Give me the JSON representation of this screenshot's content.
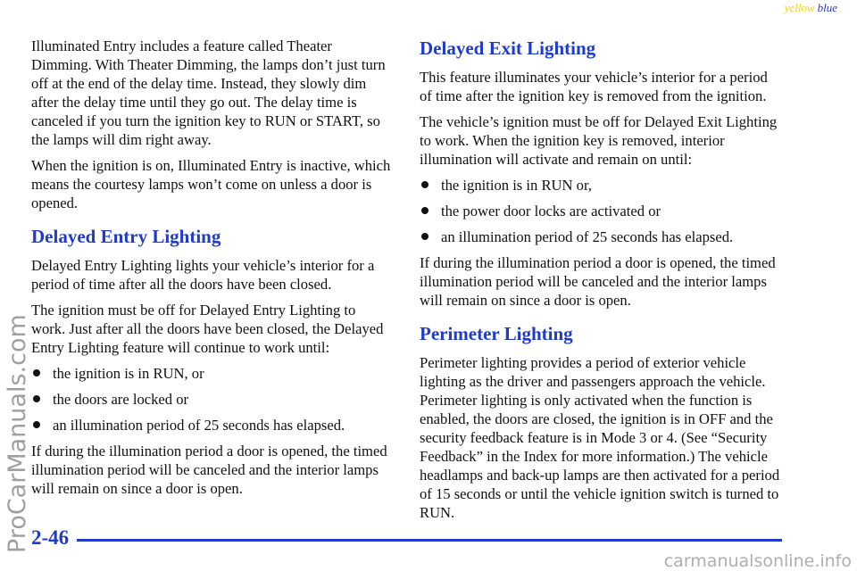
{
  "header": {
    "tag_yellow": "yellow",
    "tag_blue": "blue"
  },
  "left_column": {
    "paragraphs": [
      "Illuminated Entry includes a feature called Theater Dimming. With Theater Dimming, the lamps don’t just turn off at the end of the delay time. Instead, they slowly dim after the delay time until they go out. The delay time is canceled if you turn the ignition key to RUN or START, so the lamps will dim right away.",
      "When the ignition is on, Illuminated Entry is inactive, which means the courtesy lamps won’t come on unless a door is opened."
    ],
    "sections": [
      {
        "heading": "Delayed Entry Lighting",
        "paragraphs": [
          "Delayed Entry Lighting lights your vehicle’s interior for a period of time after all the doors have been closed.",
          "The ignition must be off for Delayed Entry Lighting to work. Just after all the doors have been closed, the Delayed Entry Lighting feature will continue to work until:"
        ],
        "bullets": [
          "the ignition is in RUN, or",
          "the doors are locked or",
          "an illumination period of 25 seconds has elapsed."
        ],
        "closing": [
          "If during the illumination period a door is opened, the timed illumination period will be canceled and the interior lamps will remain on since a door is open."
        ]
      }
    ]
  },
  "right_column": {
    "sections": [
      {
        "heading": "Delayed Exit Lighting",
        "paragraphs": [
          "This feature illuminates your vehicle’s interior for a period of time after the ignition key is removed from the ignition.",
          "The vehicle’s ignition must be off for Delayed Exit Lighting to work. When the ignition key is removed, interior illumination will activate and remain on until:"
        ],
        "bullets": [
          "the ignition is in RUN or,",
          "the power door locks are activated or",
          "an illumination period of 25 seconds has elapsed."
        ],
        "closing": [
          "If during the illumination period a door is opened, the timed illumination period will be canceled and the interior lamps will remain on since a door is open."
        ]
      },
      {
        "heading": "Perimeter Lighting",
        "paragraphs": [
          "Perimeter lighting provides a period of exterior vehicle lighting as the driver and passengers approach the vehicle. Perimeter lighting is only activated when the function is enabled, the doors are closed, the ignition is in OFF and the security feedback feature is in Mode 3 or 4. (See “Security Feedback” in the Index for more information.) The vehicle headlamps and back-up lamps are then activated for a period of 15 seconds or until the vehicle ignition switch is turned to RUN."
        ]
      }
    ]
  },
  "footer": {
    "page_number": "2-46"
  },
  "watermarks": {
    "side": "ProCarManuals.com",
    "bottom": "carmanualsonline.info"
  }
}
